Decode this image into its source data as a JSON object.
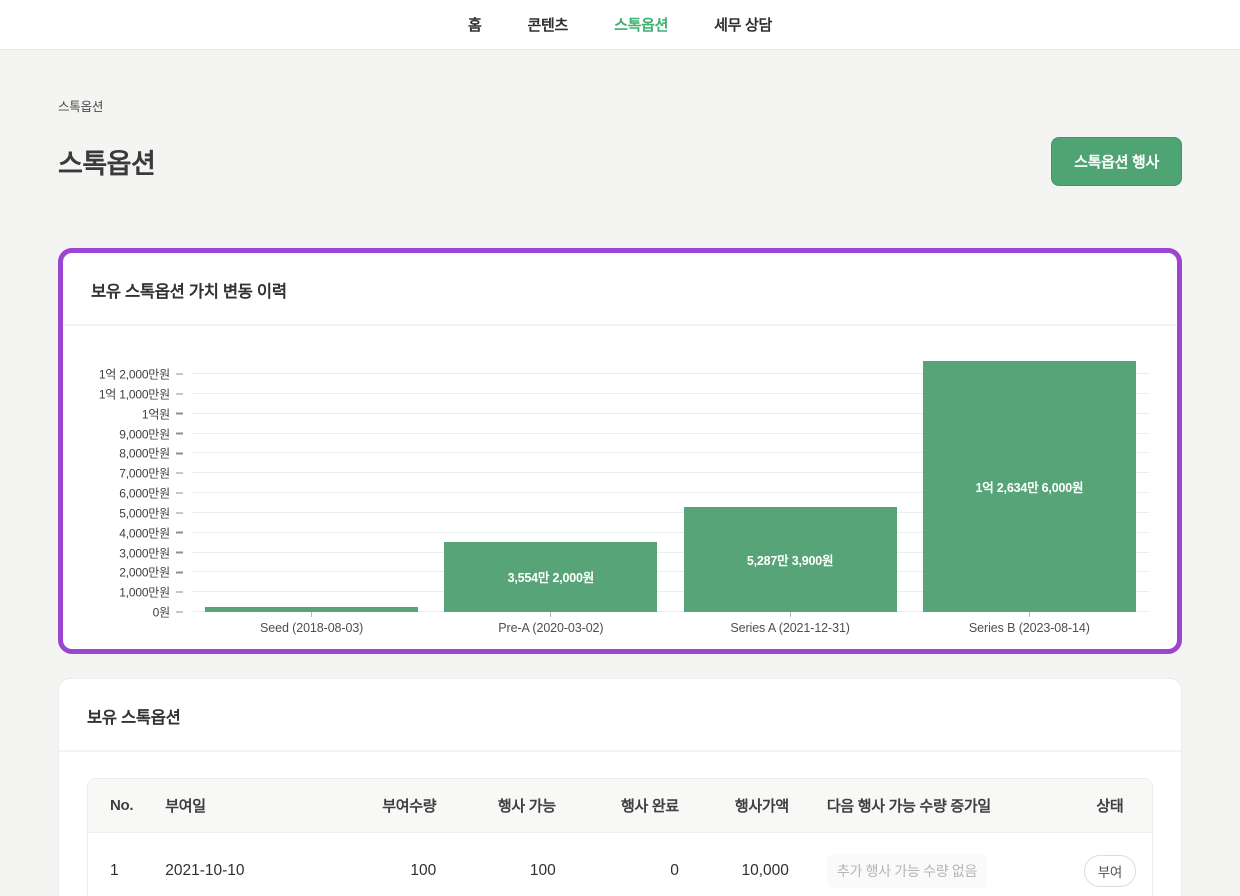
{
  "nav": {
    "items": [
      {
        "label": "홈",
        "active": false
      },
      {
        "label": "콘텐츠",
        "active": false
      },
      {
        "label": "스톡옵션",
        "active": true
      },
      {
        "label": "세무 상담",
        "active": false
      }
    ]
  },
  "page": {
    "breadcrumb": "스톡옵션",
    "title": "스톡옵션",
    "action_button": "스톡옵션 행사"
  },
  "chart_card": {
    "title": "보유 스톡옵션 가치 변동 이력"
  },
  "chart_data": {
    "type": "bar",
    "title": "보유 스톡옵션 가치 변동 이력",
    "categories": [
      "Seed (2018-08-03)",
      "Pre-A (2020-03-02)",
      "Series A (2021-12-31)",
      "Series B (2023-08-14)"
    ],
    "values": [
      2500000,
      35542000,
      52873900,
      126346000
    ],
    "bar_labels": [
      "",
      "3,554만 2,000원",
      "5,287만 3,900원",
      "1억 2,634만 6,000원"
    ],
    "yticks": [
      {
        "label": "0원",
        "value": 0
      },
      {
        "label": "1,000만원",
        "value": 10000000
      },
      {
        "label": "2,000만원",
        "value": 20000000
      },
      {
        "label": "3,000만원",
        "value": 30000000
      },
      {
        "label": "4,000만원",
        "value": 40000000
      },
      {
        "label": "5,000만원",
        "value": 50000000
      },
      {
        "label": "6,000만원",
        "value": 60000000
      },
      {
        "label": "7,000만원",
        "value": 70000000
      },
      {
        "label": "8,000만원",
        "value": 80000000
      },
      {
        "label": "9,000만원",
        "value": 90000000
      },
      {
        "label": "1억원",
        "value": 100000000
      },
      {
        "label": "1억 1,000만원",
        "value": 110000000
      },
      {
        "label": "1억 2,000만원",
        "value": 120000000
      }
    ],
    "xlabel": "",
    "ylabel": "",
    "ylim": [
      0,
      126346000
    ],
    "grid": true,
    "legend": false,
    "bar_color": "#57a478"
  },
  "table_card": {
    "title": "보유 스톡옵션",
    "columns": [
      "No.",
      "부여일",
      "부여수량",
      "행사 가능",
      "행사 완료",
      "행사가액",
      "다음 행사 가능 수량 증가일",
      "상태"
    ],
    "rows": [
      [
        "1",
        "2021-10-10",
        "100",
        "100",
        "0",
        "10,000",
        "추가 행사 가능 수량 없음",
        "부여"
      ]
    ]
  },
  "colors": {
    "brand_green": "#4fa473",
    "nav_active_green": "#3eb06f",
    "bar_green": "#57a478",
    "highlight_purple": "#9b45d0",
    "page_background": "#f4f4f2"
  }
}
